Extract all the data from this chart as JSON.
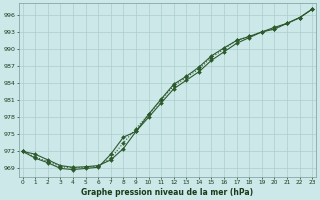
{
  "x": [
    0,
    1,
    2,
    3,
    4,
    5,
    6,
    7,
    8,
    9,
    10,
    11,
    12,
    13,
    14,
    15,
    16,
    17,
    18,
    19,
    20,
    21,
    22,
    23
  ],
  "line1": [
    972.0,
    971.5,
    970.5,
    969.5,
    969.2,
    969.3,
    969.5,
    970.5,
    972.5,
    975.5,
    978.0,
    980.5,
    983.0,
    984.5,
    986.0,
    988.0,
    989.5,
    991.0,
    992.0,
    993.0,
    993.5,
    994.5,
    995.5,
    997.0
  ],
  "line2": [
    972.0,
    971.0,
    970.2,
    969.3,
    969.1,
    969.2,
    969.4,
    970.8,
    973.5,
    976.0,
    978.5,
    981.0,
    983.5,
    985.0,
    986.5,
    988.5,
    990.0,
    991.5,
    992.2,
    993.0,
    993.5,
    994.5,
    995.5,
    997.0
  ],
  "line3": [
    972.0,
    970.8,
    970.0,
    969.0,
    968.8,
    969.0,
    969.2,
    971.5,
    974.5,
    975.5,
    978.5,
    981.2,
    983.8,
    985.2,
    986.8,
    988.8,
    990.2,
    991.5,
    992.2,
    993.0,
    993.8,
    994.5,
    995.5,
    997.0
  ],
  "ylim": [
    967.5,
    998.0
  ],
  "xlim": [
    -0.3,
    23.3
  ],
  "yticks": [
    969,
    972,
    975,
    978,
    981,
    984,
    987,
    990,
    993,
    996
  ],
  "xticks": [
    0,
    1,
    2,
    3,
    4,
    5,
    6,
    7,
    8,
    9,
    10,
    11,
    12,
    13,
    14,
    15,
    16,
    17,
    18,
    19,
    20,
    21,
    22,
    23
  ],
  "xlabel": "Graphe pression niveau de la mer (hPa)",
  "bg_color": "#cce8e8",
  "grid_color_major": "#aacccc",
  "grid_color_minor": "#bbdddd",
  "line_color": "#2d5a2d",
  "label_color": "#1a3a1a"
}
